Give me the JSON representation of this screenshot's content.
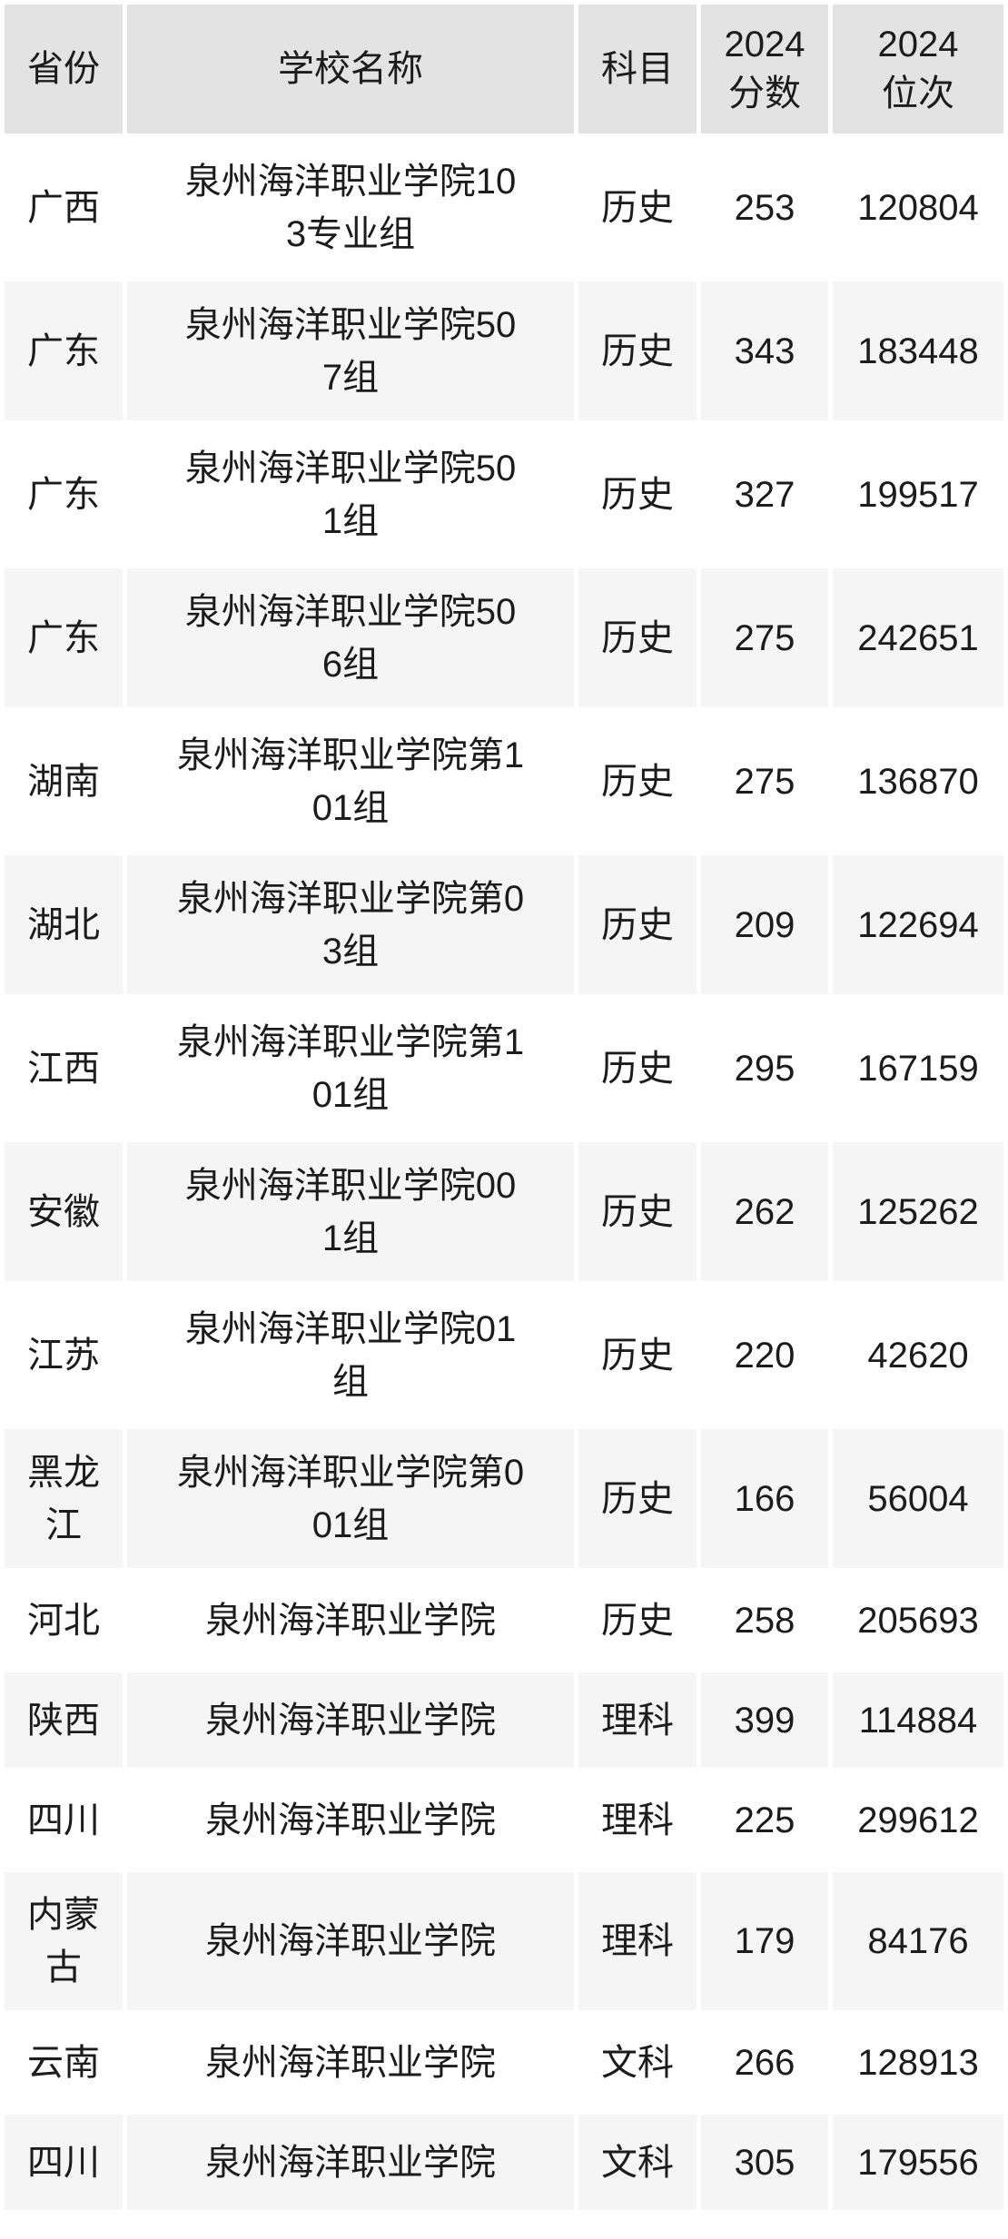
{
  "chart_data": {
    "type": "table",
    "title": "",
    "columns": [
      {
        "key": "province",
        "label": "省份"
      },
      {
        "key": "school",
        "label": "学校名称"
      },
      {
        "key": "subject",
        "label": "科目"
      },
      {
        "key": "score",
        "label": "2024\n分数"
      },
      {
        "key": "rank",
        "label": "2024\n位次"
      }
    ],
    "rows": [
      {
        "province": "广西",
        "school": "泉州海洋职业学院103专业组",
        "subject": "历史",
        "score": "253",
        "rank": "120804"
      },
      {
        "province": "广东",
        "school": "泉州海洋职业学院507组",
        "subject": "历史",
        "score": "343",
        "rank": "183448"
      },
      {
        "province": "广东",
        "school": "泉州海洋职业学院501组",
        "subject": "历史",
        "score": "327",
        "rank": "199517"
      },
      {
        "province": "广东",
        "school": "泉州海洋职业学院506组",
        "subject": "历史",
        "score": "275",
        "rank": "242651"
      },
      {
        "province": "湖南",
        "school": "泉州海洋职业学院第101组",
        "subject": "历史",
        "score": "275",
        "rank": "136870"
      },
      {
        "province": "湖北",
        "school": "泉州海洋职业学院第03组",
        "subject": "历史",
        "score": "209",
        "rank": "122694"
      },
      {
        "province": "江西",
        "school": "泉州海洋职业学院第101组",
        "subject": "历史",
        "score": "295",
        "rank": "167159"
      },
      {
        "province": "安徽",
        "school": "泉州海洋职业学院001组",
        "subject": "历史",
        "score": "262",
        "rank": "125262"
      },
      {
        "province": "江苏",
        "school": "泉州海洋职业学院01组",
        "subject": "历史",
        "score": "220",
        "rank": "42620"
      },
      {
        "province": "黑龙江",
        "school": "泉州海洋职业学院第001组",
        "subject": "历史",
        "score": "166",
        "rank": "56004"
      },
      {
        "province": "河北",
        "school": "泉州海洋职业学院",
        "subject": "历史",
        "score": "258",
        "rank": "205693"
      },
      {
        "province": "陕西",
        "school": "泉州海洋职业学院",
        "subject": "理科",
        "score": "399",
        "rank": "114884"
      },
      {
        "province": "四川",
        "school": "泉州海洋职业学院",
        "subject": "理科",
        "score": "225",
        "rank": "299612"
      },
      {
        "province": "内蒙古",
        "school": "泉州海洋职业学院",
        "subject": "理科",
        "score": "179",
        "rank": "84176"
      },
      {
        "province": "云南",
        "school": "泉州海洋职业学院",
        "subject": "文科",
        "score": "266",
        "rank": "128913"
      },
      {
        "province": "四川",
        "school": "泉州海洋职业学院",
        "subject": "文科",
        "score": "305",
        "rank": "179556"
      }
    ]
  },
  "colors": {
    "header_bg": "#e3e3e3",
    "stripe_bg": "#f5f5f5",
    "row_bg": "#ffffff",
    "gutter": "#ffffff",
    "text": "#1c1c1c"
  }
}
